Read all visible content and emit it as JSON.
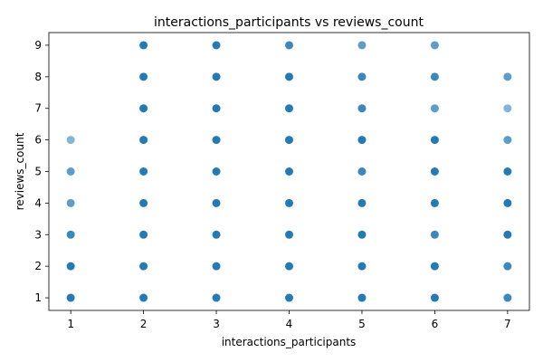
{
  "chart_data": {
    "type": "scatter",
    "title": "interactions_participants vs reviews_count",
    "xlabel": "interactions_participants",
    "ylabel": "reviews_count",
    "xlim": [
      0.7,
      7.3
    ],
    "ylim": [
      0.6,
      9.4
    ],
    "xticks": [
      1,
      2,
      3,
      4,
      5,
      6,
      7
    ],
    "yticks": [
      1,
      2,
      3,
      4,
      5,
      6,
      7,
      8,
      9
    ],
    "grid": false,
    "legend": "none",
    "marker_color": "#1f77b4",
    "points": [
      {
        "x": 1,
        "y": 1,
        "density": "high"
      },
      {
        "x": 1,
        "y": 2,
        "density": "high"
      },
      {
        "x": 1,
        "y": 3,
        "density": "medium"
      },
      {
        "x": 1,
        "y": 4,
        "density": "low"
      },
      {
        "x": 1,
        "y": 5,
        "density": "low"
      },
      {
        "x": 1,
        "y": 6,
        "density": "single"
      },
      {
        "x": 2,
        "y": 1,
        "density": "high"
      },
      {
        "x": 2,
        "y": 2,
        "density": "high"
      },
      {
        "x": 2,
        "y": 3,
        "density": "high"
      },
      {
        "x": 2,
        "y": 4,
        "density": "high"
      },
      {
        "x": 2,
        "y": 5,
        "density": "high"
      },
      {
        "x": 2,
        "y": 6,
        "density": "high"
      },
      {
        "x": 2,
        "y": 7,
        "density": "high"
      },
      {
        "x": 2,
        "y": 8,
        "density": "high"
      },
      {
        "x": 2,
        "y": 9,
        "density": "high"
      },
      {
        "x": 3,
        "y": 1,
        "density": "high"
      },
      {
        "x": 3,
        "y": 2,
        "density": "high"
      },
      {
        "x": 3,
        "y": 3,
        "density": "high"
      },
      {
        "x": 3,
        "y": 4,
        "density": "high"
      },
      {
        "x": 3,
        "y": 5,
        "density": "high"
      },
      {
        "x": 3,
        "y": 6,
        "density": "high"
      },
      {
        "x": 3,
        "y": 7,
        "density": "high"
      },
      {
        "x": 3,
        "y": 8,
        "density": "high"
      },
      {
        "x": 3,
        "y": 9,
        "density": "high"
      },
      {
        "x": 4,
        "y": 1,
        "density": "high"
      },
      {
        "x": 4,
        "y": 2,
        "density": "high"
      },
      {
        "x": 4,
        "y": 3,
        "density": "high"
      },
      {
        "x": 4,
        "y": 4,
        "density": "high"
      },
      {
        "x": 4,
        "y": 5,
        "density": "high"
      },
      {
        "x": 4,
        "y": 6,
        "density": "high"
      },
      {
        "x": 4,
        "y": 7,
        "density": "high"
      },
      {
        "x": 4,
        "y": 8,
        "density": "high"
      },
      {
        "x": 4,
        "y": 9,
        "density": "medium"
      },
      {
        "x": 5,
        "y": 1,
        "density": "high"
      },
      {
        "x": 5,
        "y": 2,
        "density": "high"
      },
      {
        "x": 5,
        "y": 3,
        "density": "high"
      },
      {
        "x": 5,
        "y": 4,
        "density": "high"
      },
      {
        "x": 5,
        "y": 5,
        "density": "medium"
      },
      {
        "x": 5,
        "y": 6,
        "density": "high"
      },
      {
        "x": 5,
        "y": 7,
        "density": "medium"
      },
      {
        "x": 5,
        "y": 8,
        "density": "medium"
      },
      {
        "x": 5,
        "y": 9,
        "density": "low"
      },
      {
        "x": 6,
        "y": 1,
        "density": "high"
      },
      {
        "x": 6,
        "y": 2,
        "density": "high"
      },
      {
        "x": 6,
        "y": 3,
        "density": "medium"
      },
      {
        "x": 6,
        "y": 4,
        "density": "high"
      },
      {
        "x": 6,
        "y": 5,
        "density": "high"
      },
      {
        "x": 6,
        "y": 6,
        "density": "high"
      },
      {
        "x": 6,
        "y": 7,
        "density": "low"
      },
      {
        "x": 6,
        "y": 8,
        "density": "medium"
      },
      {
        "x": 6,
        "y": 9,
        "density": "low"
      },
      {
        "x": 7,
        "y": 1,
        "density": "medium"
      },
      {
        "x": 7,
        "y": 2,
        "density": "medium"
      },
      {
        "x": 7,
        "y": 3,
        "density": "high"
      },
      {
        "x": 7,
        "y": 4,
        "density": "high"
      },
      {
        "x": 7,
        "y": 5,
        "density": "high"
      },
      {
        "x": 7,
        "y": 6,
        "density": "low"
      },
      {
        "x": 7,
        "y": 7,
        "density": "single"
      },
      {
        "x": 7,
        "y": 8,
        "density": "low"
      }
    ]
  }
}
